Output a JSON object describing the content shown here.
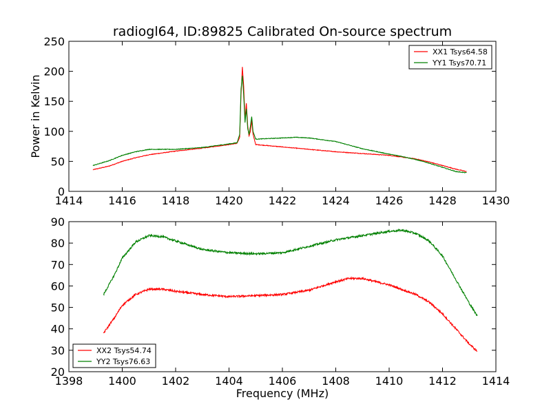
{
  "figure": {
    "title": "radiogl64, ID:89825 Calibrated On-source spectrum"
  },
  "chart_data": [
    {
      "type": "line",
      "title": "radiogl64, ID:89825 Calibrated On-source spectrum",
      "xlabel": "",
      "ylabel": "Power in Kelvin",
      "xlim": [
        1414,
        1430
      ],
      "ylim": [
        0,
        250
      ],
      "xticks": [
        "1414",
        "1416",
        "1418",
        "1420",
        "1422",
        "1424",
        "1426",
        "1428",
        "1430"
      ],
      "yticks": [
        "0",
        "50",
        "100",
        "150",
        "200",
        "250"
      ],
      "grid": false,
      "legend_position": "top-right",
      "series": [
        {
          "name": "XX1 Tsys64.58",
          "color": "#ff0000",
          "points": [
            [
              1414.9,
              36
            ],
            [
              1415.5,
              42
            ],
            [
              1416.0,
              50
            ],
            [
              1416.5,
              56
            ],
            [
              1417.0,
              61
            ],
            [
              1418.0,
              67
            ],
            [
              1419.0,
              72
            ],
            [
              1419.5,
              75
            ],
            [
              1420.0,
              78
            ],
            [
              1420.3,
              80
            ],
            [
              1420.4,
              90
            ],
            [
              1420.45,
              160
            ],
            [
              1420.5,
              207
            ],
            [
              1420.55,
              175
            ],
            [
              1420.6,
              120
            ],
            [
              1420.65,
              147
            ],
            [
              1420.7,
              110
            ],
            [
              1420.75,
              92
            ],
            [
              1420.8,
              100
            ],
            [
              1420.85,
              118
            ],
            [
              1420.9,
              95
            ],
            [
              1421.0,
              78
            ],
            [
              1421.5,
              76
            ],
            [
              1422.0,
              74
            ],
            [
              1423.0,
              70
            ],
            [
              1424.0,
              66
            ],
            [
              1425.0,
              63
            ],
            [
              1426.0,
              60
            ],
            [
              1427.0,
              54
            ],
            [
              1427.5,
              49
            ],
            [
              1428.0,
              43
            ],
            [
              1428.5,
              37
            ],
            [
              1428.9,
              33
            ]
          ]
        },
        {
          "name": "YY1 Tsys70.71",
          "color": "#008000",
          "points": [
            [
              1414.9,
              43
            ],
            [
              1415.5,
              51
            ],
            [
              1416.0,
              60
            ],
            [
              1416.5,
              66
            ],
            [
              1417.0,
              70
            ],
            [
              1418.0,
              70
            ],
            [
              1419.0,
              73
            ],
            [
              1419.5,
              76
            ],
            [
              1420.0,
              79
            ],
            [
              1420.3,
              81
            ],
            [
              1420.4,
              95
            ],
            [
              1420.45,
              170
            ],
            [
              1420.5,
              193
            ],
            [
              1420.55,
              160
            ],
            [
              1420.6,
              115
            ],
            [
              1420.65,
              138
            ],
            [
              1420.7,
              105
            ],
            [
              1420.75,
              95
            ],
            [
              1420.8,
              108
            ],
            [
              1420.85,
              125
            ],
            [
              1420.9,
              100
            ],
            [
              1421.0,
              87
            ],
            [
              1421.5,
              88
            ],
            [
              1422.0,
              89
            ],
            [
              1422.5,
              90
            ],
            [
              1423.0,
              89
            ],
            [
              1424.0,
              83
            ],
            [
              1425.0,
              71
            ],
            [
              1426.0,
              62
            ],
            [
              1426.5,
              58
            ],
            [
              1427.0,
              53
            ],
            [
              1427.5,
              47
            ],
            [
              1428.0,
              40
            ],
            [
              1428.5,
              33
            ],
            [
              1428.9,
              31
            ]
          ]
        }
      ]
    },
    {
      "type": "line",
      "title": "",
      "xlabel": "Frequency (MHz)",
      "ylabel": "",
      "xlim": [
        1398,
        1414
      ],
      "ylim": [
        20,
        90
      ],
      "xticks": [
        "1398",
        "1400",
        "1402",
        "1404",
        "1406",
        "1408",
        "1410",
        "1412",
        "1414"
      ],
      "yticks": [
        "20",
        "30",
        "40",
        "50",
        "60",
        "70",
        "80",
        "90"
      ],
      "grid": false,
      "legend_position": "bottom-left",
      "series": [
        {
          "name": "XX2 Tsys54.74",
          "color": "#ff0000",
          "points": [
            [
              1399.3,
              38
            ],
            [
              1399.7,
              45
            ],
            [
              1400.0,
              51
            ],
            [
              1400.5,
              56
            ],
            [
              1401.0,
              58.5
            ],
            [
              1401.5,
              58.5
            ],
            [
              1402.0,
              57.5
            ],
            [
              1403.0,
              56
            ],
            [
              1404.0,
              55
            ],
            [
              1405.0,
              55.5
            ],
            [
              1406.0,
              56
            ],
            [
              1407.0,
              58
            ],
            [
              1408.0,
              62
            ],
            [
              1408.5,
              63.5
            ],
            [
              1409.0,
              63.5
            ],
            [
              1410.0,
              60.5
            ],
            [
              1411.0,
              56
            ],
            [
              1411.5,
              52.5
            ],
            [
              1412.0,
              47
            ],
            [
              1412.5,
              40
            ],
            [
              1413.0,
              33
            ],
            [
              1413.3,
              29.5
            ]
          ]
        },
        {
          "name": "YY2 Tsys76.63",
          "color": "#008000",
          "points": [
            [
              1399.3,
              56
            ],
            [
              1399.7,
              65
            ],
            [
              1400.0,
              73
            ],
            [
              1400.5,
              80.5
            ],
            [
              1401.0,
              83.5
            ],
            [
              1401.5,
              83
            ],
            [
              1402.0,
              81
            ],
            [
              1403.0,
              77
            ],
            [
              1404.0,
              75.5
            ],
            [
              1405.0,
              75
            ],
            [
              1406.0,
              75.5
            ],
            [
              1407.0,
              78.5
            ],
            [
              1408.0,
              81.5
            ],
            [
              1409.0,
              83.5
            ],
            [
              1410.0,
              85.5
            ],
            [
              1410.5,
              86
            ],
            [
              1411.0,
              84.5
            ],
            [
              1411.5,
              81
            ],
            [
              1412.0,
              74
            ],
            [
              1412.5,
              63
            ],
            [
              1413.0,
              52
            ],
            [
              1413.3,
              46
            ]
          ]
        }
      ]
    }
  ]
}
